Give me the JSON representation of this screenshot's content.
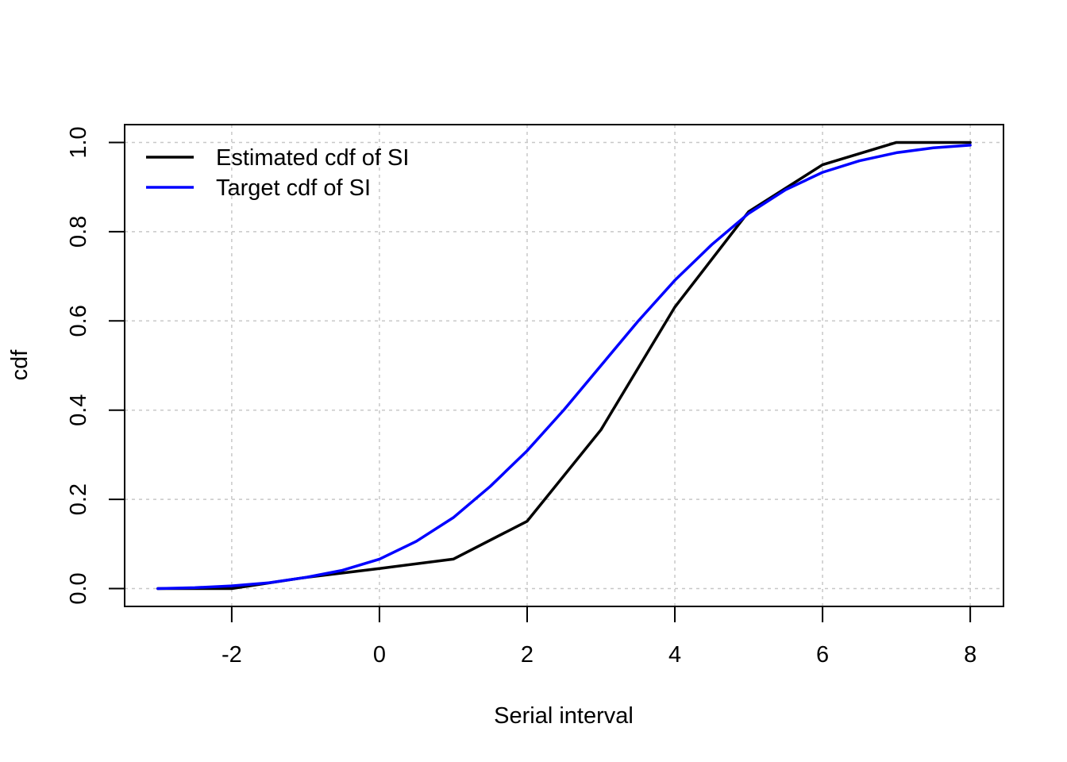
{
  "chart_data": {
    "type": "line",
    "title": "",
    "xlabel": "Serial interval",
    "ylabel": "cdf",
    "xlim": [
      -3.45,
      8.45
    ],
    "ylim": [
      -0.04,
      1.04
    ],
    "xticks": [
      -2,
      0,
      2,
      4,
      6,
      8
    ],
    "xtick_labels": [
      "-2",
      "0",
      "2",
      "4",
      "6",
      "8"
    ],
    "yticks": [
      0.0,
      0.2,
      0.4,
      0.6,
      0.8,
      1.0
    ],
    "ytick_labels": [
      "0.0",
      "0.2",
      "0.4",
      "0.6",
      "0.8",
      "1.0"
    ],
    "grid": true,
    "legend_position": "top-left",
    "series": [
      {
        "name": "Estimated cdf of SI",
        "color": "#000000",
        "x": [
          -3,
          -2,
          -1,
          0,
          1,
          2,
          3,
          4,
          5,
          6,
          7,
          8
        ],
        "y": [
          0.0,
          0.0,
          0.025,
          0.045,
          0.066,
          0.151,
          0.356,
          0.631,
          0.845,
          0.95,
          1.0,
          1.0
        ]
      },
      {
        "name": "Target cdf of SI",
        "color": "#0000ff",
        "x": [
          -3,
          -2.5,
          -2,
          -1.5,
          -1,
          -0.5,
          0,
          0.5,
          1,
          1.5,
          2,
          2.5,
          3,
          3.5,
          4,
          4.5,
          5,
          5.5,
          6,
          6.5,
          7,
          7.5,
          8
        ],
        "y": [
          0.0,
          0.002,
          0.006,
          0.013,
          0.025,
          0.041,
          0.066,
          0.106,
          0.159,
          0.229,
          0.309,
          0.401,
          0.5,
          0.599,
          0.691,
          0.771,
          0.841,
          0.894,
          0.933,
          0.959,
          0.977,
          0.988,
          0.994
        ]
      }
    ]
  }
}
